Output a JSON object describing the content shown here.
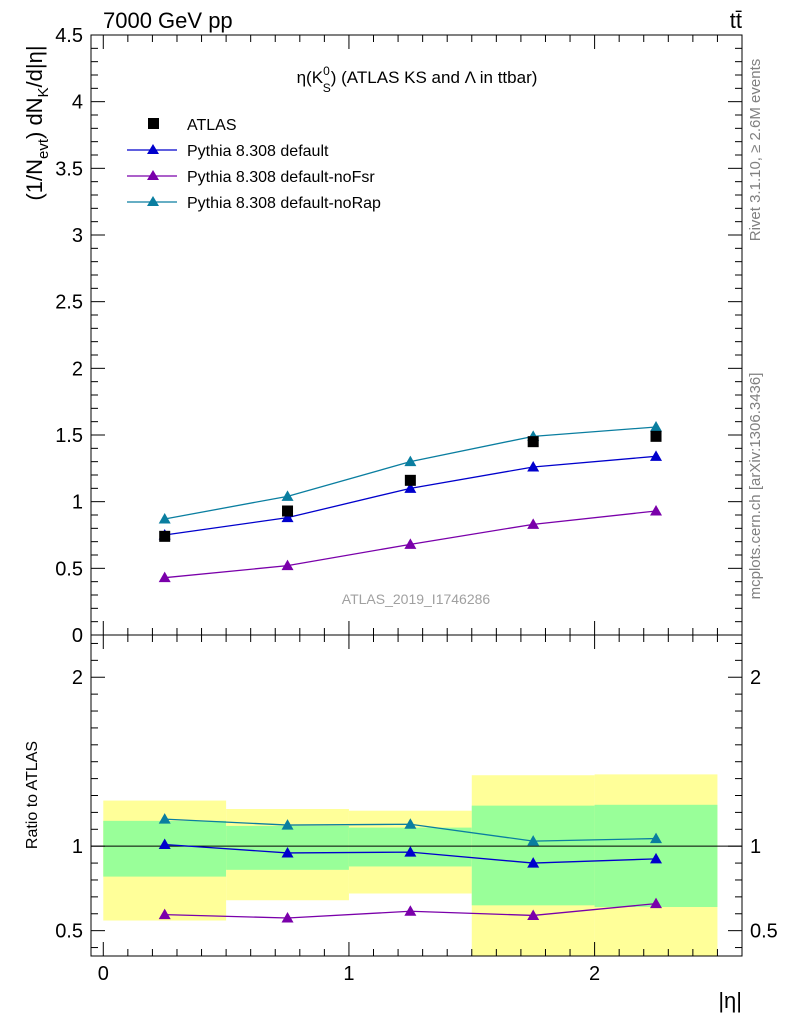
{
  "header": {
    "energy_label": "7000 GeV pp",
    "process_label": "tt̄"
  },
  "side_labels": {
    "rivet": "Rivet 3.1.10, ≥ 2.6M events",
    "mcplots": "mcplots.cern.ch [arXiv:1306.3436]"
  },
  "chart_data": [
    {
      "type": "line",
      "title": "η(K⁰S) (ATLAS KS and Λ in ttbar)",
      "title_parts": {
        "eta": "η(K",
        "sup": "0",
        "sub": "S",
        "rest": ") (ATLAS KS and Λ in ttbar)"
      },
      "ylabel": "(1/Nevt) dNK/d|η|",
      "ylabel_parts": {
        "a": "(1/N",
        "sub1": "evt",
        "b": ") dN",
        "sub2": "K",
        "c": "/d|η|"
      },
      "watermark": "ATLAS_2019_I1746286",
      "xlim": [
        -0.05,
        2.6
      ],
      "ylim": [
        0,
        4.5
      ],
      "x_bin_edges": [
        0,
        0.5,
        1,
        1.5,
        2,
        2.5
      ],
      "x": [
        0.25,
        0.75,
        1.25,
        1.75,
        2.25
      ],
      "y_ticks": [
        {
          "v": 0,
          "label": "0"
        },
        {
          "v": 0.5,
          "label": "0.5"
        },
        {
          "v": 1,
          "label": "1"
        },
        {
          "v": 1.5,
          "label": "1.5"
        },
        {
          "v": 2,
          "label": "2"
        },
        {
          "v": 2.5,
          "label": "2.5"
        },
        {
          "v": 3,
          "label": "3"
        },
        {
          "v": 3.5,
          "label": "3.5"
        },
        {
          "v": 4,
          "label": "4"
        },
        {
          "v": 4.5,
          "label": "4.5"
        }
      ],
      "legend_position": "top-left",
      "data_series": {
        "name": "ATLAS",
        "marker": "square",
        "color": "#000000",
        "values": [
          0.74,
          0.93,
          1.16,
          1.45,
          1.49
        ]
      },
      "series": [
        {
          "name": "Pythia 8.308 default",
          "color": "#0000cc",
          "values": [
            0.75,
            0.88,
            1.1,
            1.26,
            1.34
          ]
        },
        {
          "name": "Pythia 8.308 default-noFsr",
          "color": "#7a00aa",
          "values": [
            0.43,
            0.52,
            0.68,
            0.83,
            0.93
          ]
        },
        {
          "name": "Pythia 8.308 default-noRap",
          "color": "#0a7ea0",
          "values": [
            0.87,
            1.04,
            1.3,
            1.49,
            1.56
          ]
        }
      ]
    },
    {
      "type": "line",
      "ylabel": "Ratio to ATLAS",
      "xlabel": "|η|",
      "xlim": [
        -0.05,
        2.6
      ],
      "ylim": [
        0.35,
        2.25
      ],
      "x_ticks": [
        {
          "v": 0,
          "label": "0"
        },
        {
          "v": 1,
          "label": "1"
        },
        {
          "v": 2,
          "label": "2"
        }
      ],
      "y_ticks": [
        {
          "v": 0.5,
          "label": "0.5"
        },
        {
          "v": 1,
          "label": "1"
        },
        {
          "v": 2,
          "label": "2"
        }
      ],
      "reference_line": 1,
      "band_colors": {
        "inner": "#99ff99",
        "outer": "#ffff99"
      },
      "bands": [
        {
          "x0": 0,
          "x1": 0.5,
          "inner": [
            0.82,
            1.15
          ],
          "outer": [
            0.56,
            1.27
          ]
        },
        {
          "x0": 0.5,
          "x1": 1,
          "inner": [
            0.86,
            1.12
          ],
          "outer": [
            0.68,
            1.22
          ]
        },
        {
          "x0": 1,
          "x1": 1.5,
          "inner": [
            0.88,
            1.11
          ],
          "outer": [
            0.72,
            1.21
          ]
        },
        {
          "x0": 1.5,
          "x1": 2,
          "inner": [
            0.65,
            1.24
          ],
          "outer": [
            0.35,
            1.42
          ]
        },
        {
          "x0": 2,
          "x1": 2.5,
          "inner": [
            0.64,
            1.245
          ],
          "outer": [
            0.35,
            1.425
          ]
        }
      ],
      "x": [
        0.25,
        0.75,
        1.25,
        1.75,
        2.25
      ],
      "series": [
        {
          "name": "Pythia 8.308 default",
          "color": "#0000cc",
          "values": [
            1.01,
            0.96,
            0.965,
            0.9,
            0.925
          ]
        },
        {
          "name": "Pythia 8.308 default-noFsr",
          "color": "#7a00aa",
          "values": [
            0.595,
            0.575,
            0.615,
            0.59,
            0.66
          ]
        },
        {
          "name": "Pythia 8.308 default-noRap",
          "color": "#0a7ea0",
          "values": [
            1.16,
            1.125,
            1.13,
            1.03,
            1.045
          ]
        }
      ]
    }
  ]
}
